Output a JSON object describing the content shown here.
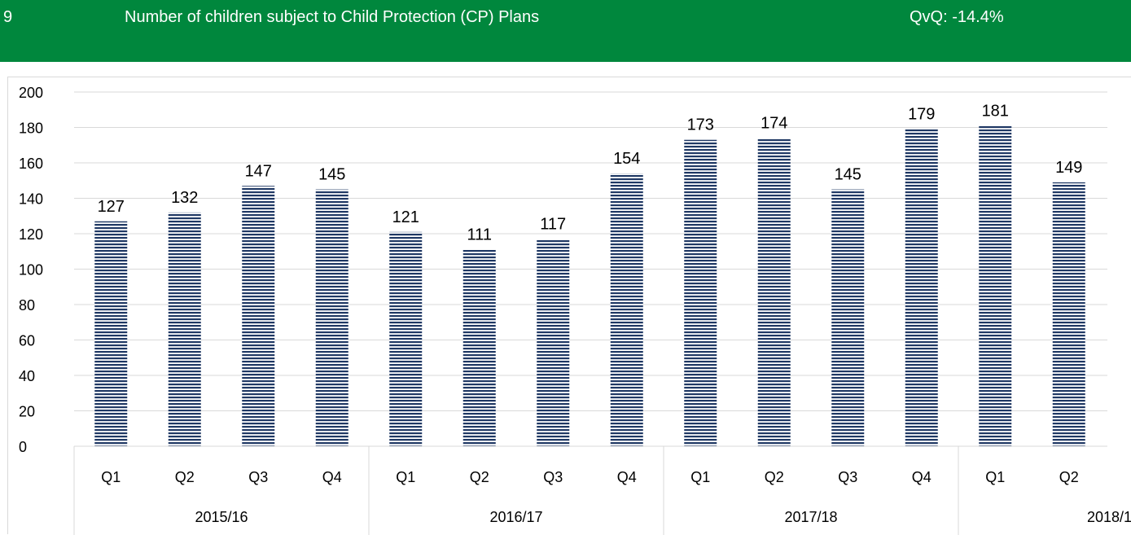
{
  "header": {
    "number": "9",
    "title": "Number of children subject to Child Protection (CP) Plans",
    "qvq": "QvQ: -14.4%"
  },
  "colors": {
    "header_bg": "#00873d",
    "bar_stripe": "#1f3864",
    "grid": "#d9d9d9"
  },
  "chart_data": {
    "type": "bar",
    "categories": [
      "Q1",
      "Q2",
      "Q3",
      "Q4",
      "Q1",
      "Q2",
      "Q3",
      "Q4",
      "Q1",
      "Q2",
      "Q3",
      "Q4",
      "Q1",
      "Q2"
    ],
    "groups": [
      {
        "label": "2015/16",
        "count": 4
      },
      {
        "label": "2016/17",
        "count": 4
      },
      {
        "label": "2017/18",
        "count": 4
      },
      {
        "label": "2018/1",
        "count": 2
      }
    ],
    "values": [
      127,
      132,
      147,
      145,
      121,
      111,
      117,
      154,
      173,
      174,
      145,
      179,
      181,
      149
    ],
    "yticks": [
      0,
      20,
      40,
      60,
      80,
      100,
      120,
      140,
      160,
      180,
      200
    ],
    "ylim": [
      0,
      200
    ],
    "grid": true,
    "bar_fill": "horizontal stripes",
    "data_labels": true
  }
}
